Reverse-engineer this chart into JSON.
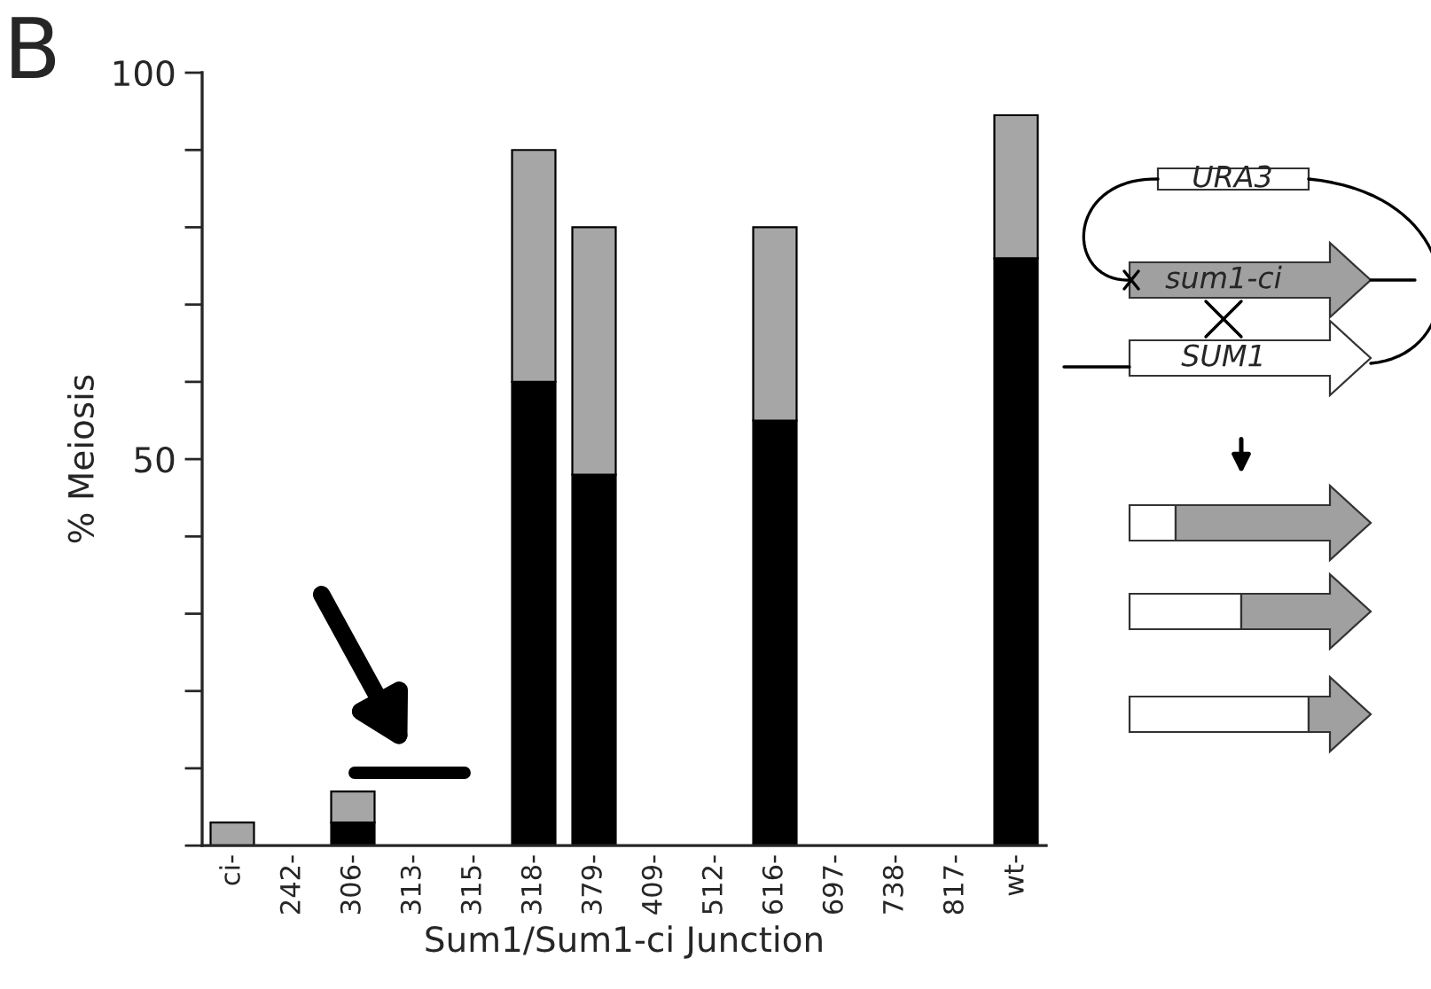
{
  "chart_data": {
    "type": "bar",
    "stacked": true,
    "xlabel": "Sum1/Sum1-ci Junction",
    "ylabel": "% Meiosis",
    "categories": [
      "ci-",
      "242-",
      "306-",
      "313-",
      "315-",
      "318-",
      "379-",
      "409-",
      "512-",
      "616-",
      "697-",
      "738-",
      "817-",
      "wt-"
    ],
    "series": [
      {
        "color": "#000000",
        "values": [
          0,
          0,
          3,
          0,
          0,
          60,
          48,
          0,
          0,
          55,
          0,
          0,
          0,
          76
        ]
      },
      {
        "color": "#a6a6a6",
        "values": [
          3,
          0,
          4,
          0,
          0,
          30,
          32,
          0,
          0,
          25,
          0,
          0,
          0,
          18.5
        ]
      }
    ],
    "ylim": [
      0,
      100
    ],
    "yticks": [
      {
        "value": 0,
        "label": null
      },
      {
        "value": 10,
        "label": null
      },
      {
        "value": 20,
        "label": null
      },
      {
        "value": 30,
        "label": null
      },
      {
        "value": 40,
        "label": null
      },
      50,
      {
        "value": 60,
        "label": null
      },
      {
        "value": 70,
        "label": null
      },
      {
        "value": 80,
        "label": null
      },
      {
        "value": 90,
        "label": null
      },
      100
    ],
    "annotations": [
      "B",
      "URA3",
      "sum1-ci",
      "SUM1"
    ]
  }
}
